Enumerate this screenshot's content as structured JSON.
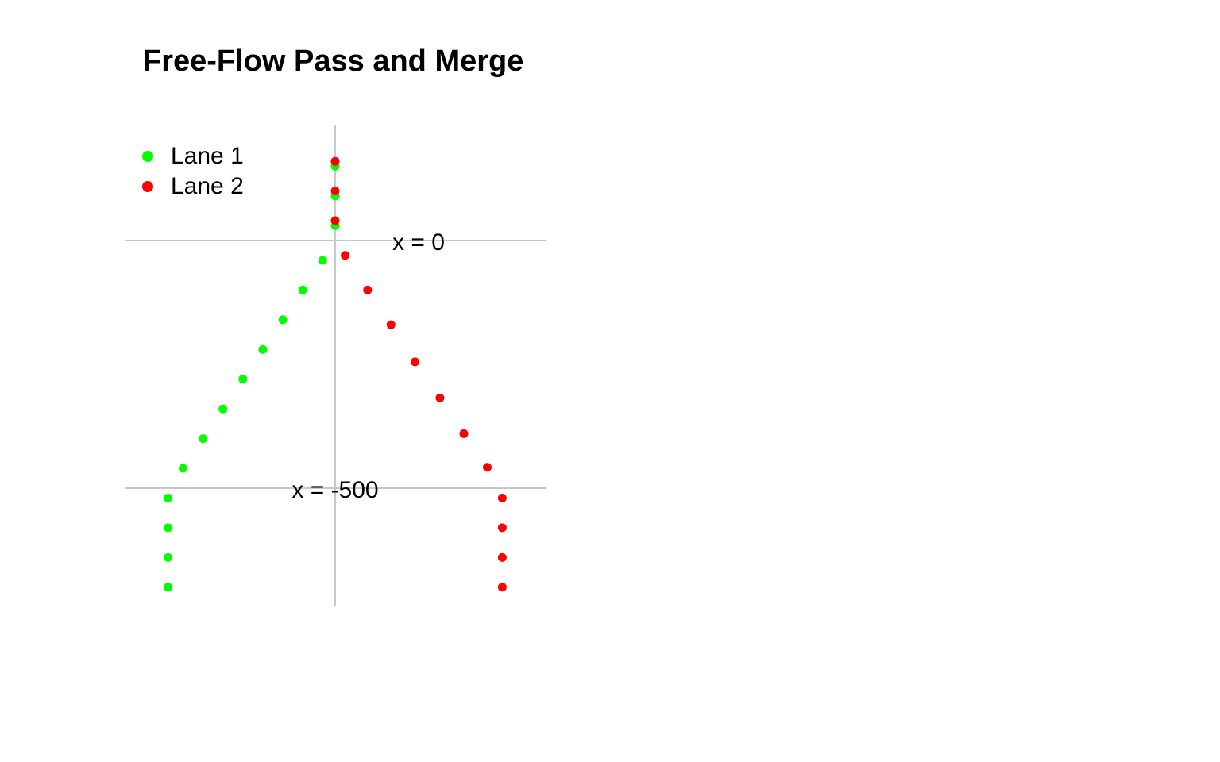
{
  "chart_data": {
    "type": "scatter",
    "title": "Free-Flow Pass and Merge",
    "xlabel": "",
    "ylabel": "",
    "grid": false,
    "legend_position": "top-left",
    "reference_lines": [
      {
        "label": "x = 0",
        "value": 0
      },
      {
        "label": "x = -500",
        "value": -500
      }
    ],
    "series": [
      {
        "name": "Lane 1",
        "color": "#00ff00",
        "points": [
          [
            0,
            150
          ],
          [
            0,
            90
          ],
          [
            0,
            30
          ],
          [
            -25,
            -40
          ],
          [
            -65,
            -100
          ],
          [
            -105,
            -160
          ],
          [
            -145,
            -220
          ],
          [
            -185,
            -280
          ],
          [
            -225,
            -340
          ],
          [
            -265,
            -400
          ],
          [
            -305,
            -460
          ],
          [
            -335,
            -520
          ],
          [
            -335,
            -580
          ],
          [
            -335,
            -640
          ],
          [
            -335,
            -700
          ]
        ]
      },
      {
        "name": "Lane 2",
        "color": "#ff0000",
        "points": [
          [
            0,
            160
          ],
          [
            0,
            100
          ],
          [
            0,
            40
          ],
          [
            20,
            -30
          ],
          [
            65,
            -100
          ],
          [
            112,
            -170
          ],
          [
            160,
            -245
          ],
          [
            210,
            -318
          ],
          [
            258,
            -390
          ],
          [
            305,
            -458
          ],
          [
            335,
            -520
          ],
          [
            335,
            -580
          ],
          [
            335,
            -640
          ],
          [
            335,
            -700
          ]
        ]
      }
    ]
  }
}
